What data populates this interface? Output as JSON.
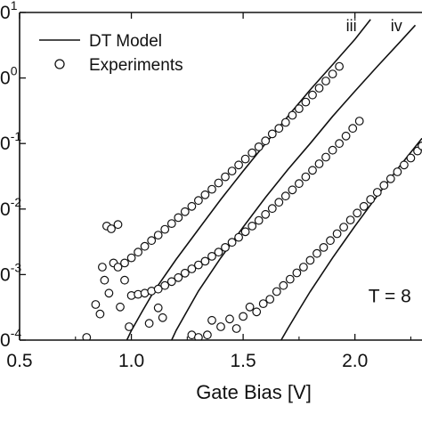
{
  "chart_data": {
    "type": "scatter",
    "title": "",
    "xlabel": "Gate Bias [V]",
    "ylabel": "",
    "xlim": [
      0.5,
      2.3
    ],
    "ylim_log10": [
      -4,
      1
    ],
    "y_scale": "log",
    "grid": false,
    "legend_position": "top-left",
    "legend": [
      {
        "label": "DT Model",
        "style": "line"
      },
      {
        "label": "Experiments",
        "style": "open-circle"
      }
    ],
    "x_ticks": [
      {
        "value": 0.5,
        "label": "0.5"
      },
      {
        "value": 1.0,
        "label": "1.0"
      },
      {
        "value": 1.5,
        "label": "1.5"
      },
      {
        "value": 2.0,
        "label": "2.0"
      }
    ],
    "y_ticks": [
      {
        "value": 10,
        "label": "0^1"
      },
      {
        "value": 1,
        "label": "0^0"
      },
      {
        "value": 0.1,
        "label": "0^-1"
      },
      {
        "value": 0.01,
        "label": "0^-2"
      },
      {
        "value": 0.001,
        "label": "0^-3"
      },
      {
        "value": 0.0001,
        "label": "0^-4"
      }
    ],
    "annotations": [
      {
        "text": "iii",
        "x": 1.96,
        "y": 5.2
      },
      {
        "text": "iv",
        "x": 2.16,
        "y": 5.2
      },
      {
        "text": "T = 8",
        "x": 2.06,
        "y": 0.00038
      }
    ],
    "model_curves": [
      {
        "label": "iii",
        "points": [
          [
            0.98,
            0.0001
          ],
          [
            1.0,
            0.00014
          ],
          [
            1.05,
            0.00028
          ],
          [
            1.1,
            0.00055
          ],
          [
            1.2,
            0.0017
          ],
          [
            1.3,
            0.0049
          ],
          [
            1.4,
            0.014
          ],
          [
            1.5,
            0.038
          ],
          [
            1.6,
            0.1
          ],
          [
            1.7,
            0.26
          ],
          [
            1.8,
            0.66
          ],
          [
            1.9,
            1.6
          ],
          [
            2.0,
            3.9
          ],
          [
            2.07,
            7.8
          ]
        ]
      },
      {
        "label": "iv",
        "points": [
          [
            1.18,
            0.0001
          ],
          [
            1.2,
            0.00014
          ],
          [
            1.25,
            0.00028
          ],
          [
            1.3,
            0.00056
          ],
          [
            1.4,
            0.0018
          ],
          [
            1.5,
            0.0053
          ],
          [
            1.6,
            0.015
          ],
          [
            1.7,
            0.04
          ],
          [
            1.8,
            0.1
          ],
          [
            1.9,
            0.26
          ],
          [
            2.0,
            0.63
          ],
          [
            2.1,
            1.5
          ],
          [
            2.2,
            3.5
          ],
          [
            2.27,
            6.4
          ]
        ]
      },
      {
        "label": "",
        "points": [
          [
            1.67,
            0.0001
          ],
          [
            1.7,
            0.00015
          ],
          [
            1.75,
            0.00029
          ],
          [
            1.8,
            0.00055
          ],
          [
            1.9,
            0.0018
          ],
          [
            2.0,
            0.0055
          ],
          [
            2.1,
            0.016
          ],
          [
            2.2,
            0.045
          ],
          [
            2.3,
            0.12
          ]
        ]
      }
    ],
    "experiment_points": [
      {
        "x": 0.84,
        "y": 0.00035
      },
      {
        "x": 0.86,
        "y": 0.00025
      },
      {
        "x": 0.87,
        "y": 0.0013
      },
      {
        "x": 0.88,
        "y": 0.00082
      },
      {
        "x": 0.89,
        "y": 0.0055
      },
      {
        "x": 0.9,
        "y": 0.00052
      },
      {
        "x": 0.91,
        "y": 0.005
      },
      {
        "x": 0.92,
        "y": 0.0015
      },
      {
        "x": 0.94,
        "y": 0.0058
      },
      {
        "x": 0.95,
        "y": 0.00032
      },
      {
        "x": 0.97,
        "y": 0.00082
      },
      {
        "x": 0.8,
        "y": 0.00011
      },
      {
        "x": 0.99,
        "y": 0.00016
      },
      {
        "x": 1.08,
        "y": 0.00018
      },
      {
        "x": 1.12,
        "y": 0.00031
      },
      {
        "x": 0.94,
        "y": 0.0013
      },
      {
        "x": 0.97,
        "y": 0.0015
      },
      {
        "x": 1.0,
        "y": 0.0018
      },
      {
        "x": 1.03,
        "y": 0.0022
      },
      {
        "x": 1.06,
        "y": 0.0027
      },
      {
        "x": 1.09,
        "y": 0.0033
      },
      {
        "x": 1.12,
        "y": 0.004
      },
      {
        "x": 1.15,
        "y": 0.0049
      },
      {
        "x": 1.18,
        "y": 0.006
      },
      {
        "x": 1.21,
        "y": 0.0074
      },
      {
        "x": 1.24,
        "y": 0.0091
      },
      {
        "x": 1.27,
        "y": 0.011
      },
      {
        "x": 1.3,
        "y": 0.0135
      },
      {
        "x": 1.33,
        "y": 0.0165
      },
      {
        "x": 1.36,
        "y": 0.02
      },
      {
        "x": 1.39,
        "y": 0.025
      },
      {
        "x": 1.42,
        "y": 0.031
      },
      {
        "x": 1.45,
        "y": 0.038
      },
      {
        "x": 1.48,
        "y": 0.047
      },
      {
        "x": 1.51,
        "y": 0.058
      },
      {
        "x": 1.54,
        "y": 0.072
      },
      {
        "x": 1.57,
        "y": 0.089
      },
      {
        "x": 1.6,
        "y": 0.11
      },
      {
        "x": 1.63,
        "y": 0.14
      },
      {
        "x": 1.66,
        "y": 0.17
      },
      {
        "x": 1.69,
        "y": 0.21
      },
      {
        "x": 1.72,
        "y": 0.27
      },
      {
        "x": 1.75,
        "y": 0.34
      },
      {
        "x": 1.78,
        "y": 0.43
      },
      {
        "x": 1.81,
        "y": 0.55
      },
      {
        "x": 1.84,
        "y": 0.7
      },
      {
        "x": 1.87,
        "y": 0.9
      },
      {
        "x": 1.9,
        "y": 1.15
      },
      {
        "x": 1.93,
        "y": 1.5
      },
      {
        "x": 1.0,
        "y": 0.00048
      },
      {
        "x": 1.03,
        "y": 0.0005
      },
      {
        "x": 1.06,
        "y": 0.00052
      },
      {
        "x": 1.09,
        "y": 0.00056
      },
      {
        "x": 1.12,
        "y": 0.0006
      },
      {
        "x": 1.15,
        "y": 0.00068
      },
      {
        "x": 1.18,
        "y": 0.00078
      },
      {
        "x": 1.21,
        "y": 0.0009
      },
      {
        "x": 1.24,
        "y": 0.00105
      },
      {
        "x": 1.27,
        "y": 0.00122
      },
      {
        "x": 1.3,
        "y": 0.0014
      },
      {
        "x": 1.33,
        "y": 0.0016
      },
      {
        "x": 1.36,
        "y": 0.0019
      },
      {
        "x": 1.39,
        "y": 0.0022
      },
      {
        "x": 1.42,
        "y": 0.0026
      },
      {
        "x": 1.45,
        "y": 0.0031
      },
      {
        "x": 1.48,
        "y": 0.0037
      },
      {
        "x": 1.51,
        "y": 0.0045
      },
      {
        "x": 1.54,
        "y": 0.0055
      },
      {
        "x": 1.57,
        "y": 0.0067
      },
      {
        "x": 1.6,
        "y": 0.0083
      },
      {
        "x": 1.63,
        "y": 0.0102
      },
      {
        "x": 1.66,
        "y": 0.0127
      },
      {
        "x": 1.69,
        "y": 0.0158
      },
      {
        "x": 1.72,
        "y": 0.0196
      },
      {
        "x": 1.75,
        "y": 0.0245
      },
      {
        "x": 1.78,
        "y": 0.031
      },
      {
        "x": 1.81,
        "y": 0.039
      },
      {
        "x": 1.84,
        "y": 0.049
      },
      {
        "x": 1.87,
        "y": 0.062
      },
      {
        "x": 1.9,
        "y": 0.079
      },
      {
        "x": 1.93,
        "y": 0.1
      },
      {
        "x": 1.96,
        "y": 0.13
      },
      {
        "x": 1.99,
        "y": 0.17
      },
      {
        "x": 2.02,
        "y": 0.22
      },
      {
        "x": 1.14,
        "y": 0.00022
      },
      {
        "x": 1.27,
        "y": 0.00012
      },
      {
        "x": 1.3,
        "y": 0.00011
      },
      {
        "x": 1.34,
        "y": 0.00012
      },
      {
        "x": 1.36,
        "y": 0.0002
      },
      {
        "x": 1.4,
        "y": 0.00016
      },
      {
        "x": 1.44,
        "y": 0.00021
      },
      {
        "x": 1.47,
        "y": 0.00015
      },
      {
        "x": 1.5,
        "y": 0.00023
      },
      {
        "x": 1.53,
        "y": 0.00032
      },
      {
        "x": 1.56,
        "y": 0.00027
      },
      {
        "x": 1.59,
        "y": 0.00036
      },
      {
        "x": 1.62,
        "y": 0.00042
      },
      {
        "x": 1.65,
        "y": 0.00055
      },
      {
        "x": 1.68,
        "y": 0.00068
      },
      {
        "x": 1.71,
        "y": 0.00085
      },
      {
        "x": 1.74,
        "y": 0.00106
      },
      {
        "x": 1.77,
        "y": 0.0013
      },
      {
        "x": 1.8,
        "y": 0.00165
      },
      {
        "x": 1.83,
        "y": 0.0021
      },
      {
        "x": 1.86,
        "y": 0.0026
      },
      {
        "x": 1.89,
        "y": 0.0033
      },
      {
        "x": 1.92,
        "y": 0.0042
      },
      {
        "x": 1.95,
        "y": 0.0053
      },
      {
        "x": 1.98,
        "y": 0.0068
      },
      {
        "x": 2.01,
        "y": 0.0087
      },
      {
        "x": 2.04,
        "y": 0.011
      },
      {
        "x": 2.07,
        "y": 0.014
      },
      {
        "x": 2.1,
        "y": 0.018
      },
      {
        "x": 2.13,
        "y": 0.023
      },
      {
        "x": 2.16,
        "y": 0.029
      },
      {
        "x": 2.19,
        "y": 0.037
      },
      {
        "x": 2.22,
        "y": 0.047
      },
      {
        "x": 2.25,
        "y": 0.06
      },
      {
        "x": 2.28,
        "y": 0.077
      },
      {
        "x": 2.3,
        "y": 0.092
      }
    ]
  }
}
